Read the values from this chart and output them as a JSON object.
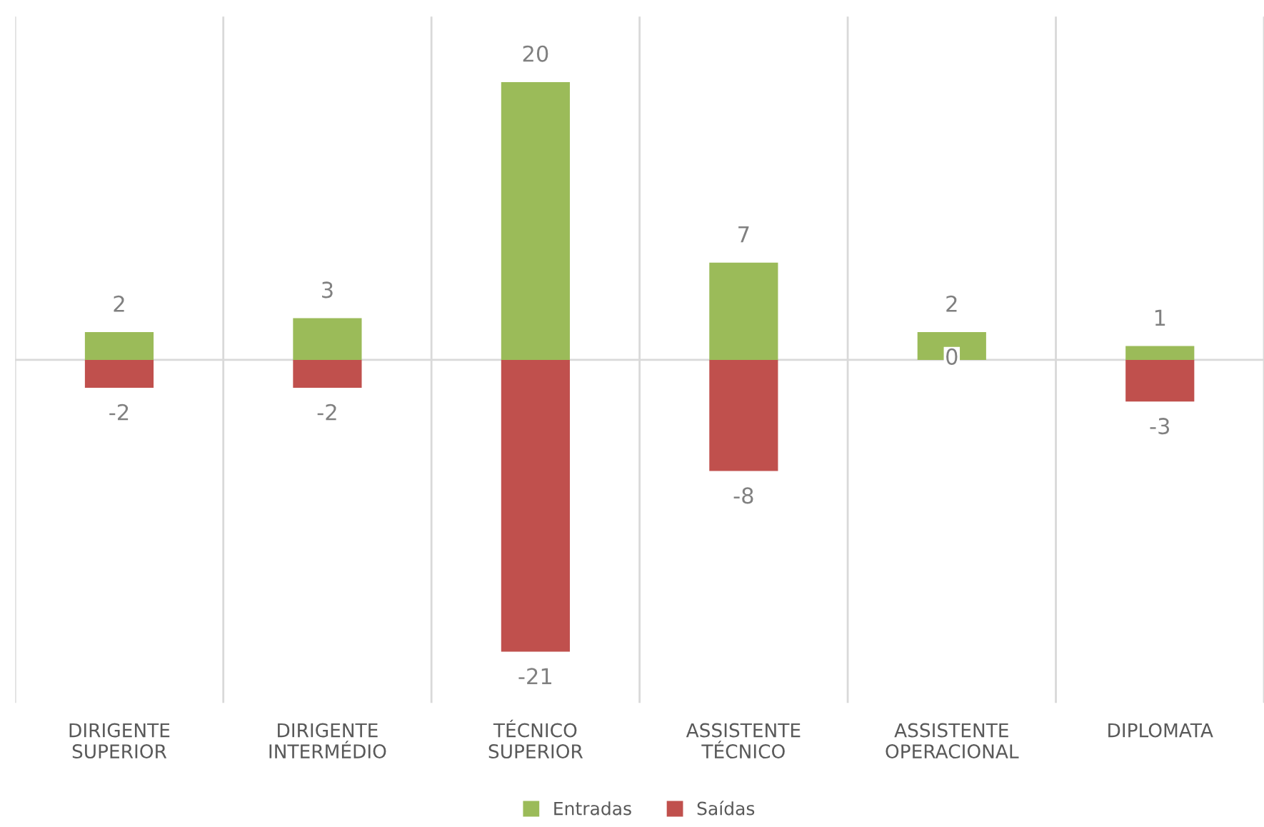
{
  "chart_data": {
    "type": "bar",
    "stacked": true,
    "data_labels": true,
    "grid": "x",
    "legend": "bottom",
    "categories": [
      "DIRIGENTE SUPERIOR",
      "DIRIGENTE INTERMÉDIO",
      "TÉCNICO SUPERIOR",
      "ASSISTENTE TÉCNICO",
      "ASSISTENTE OPERACIONAL",
      "DIPLOMATA"
    ],
    "series": [
      {
        "name": "Entradas",
        "color": "#9bbb59",
        "values": [
          2,
          3,
          20,
          7,
          2,
          1
        ]
      },
      {
        "name": "Saídas",
        "color": "#c0504d",
        "values": [
          -2,
          -2,
          -21,
          -8,
          0,
          -3
        ]
      }
    ]
  }
}
